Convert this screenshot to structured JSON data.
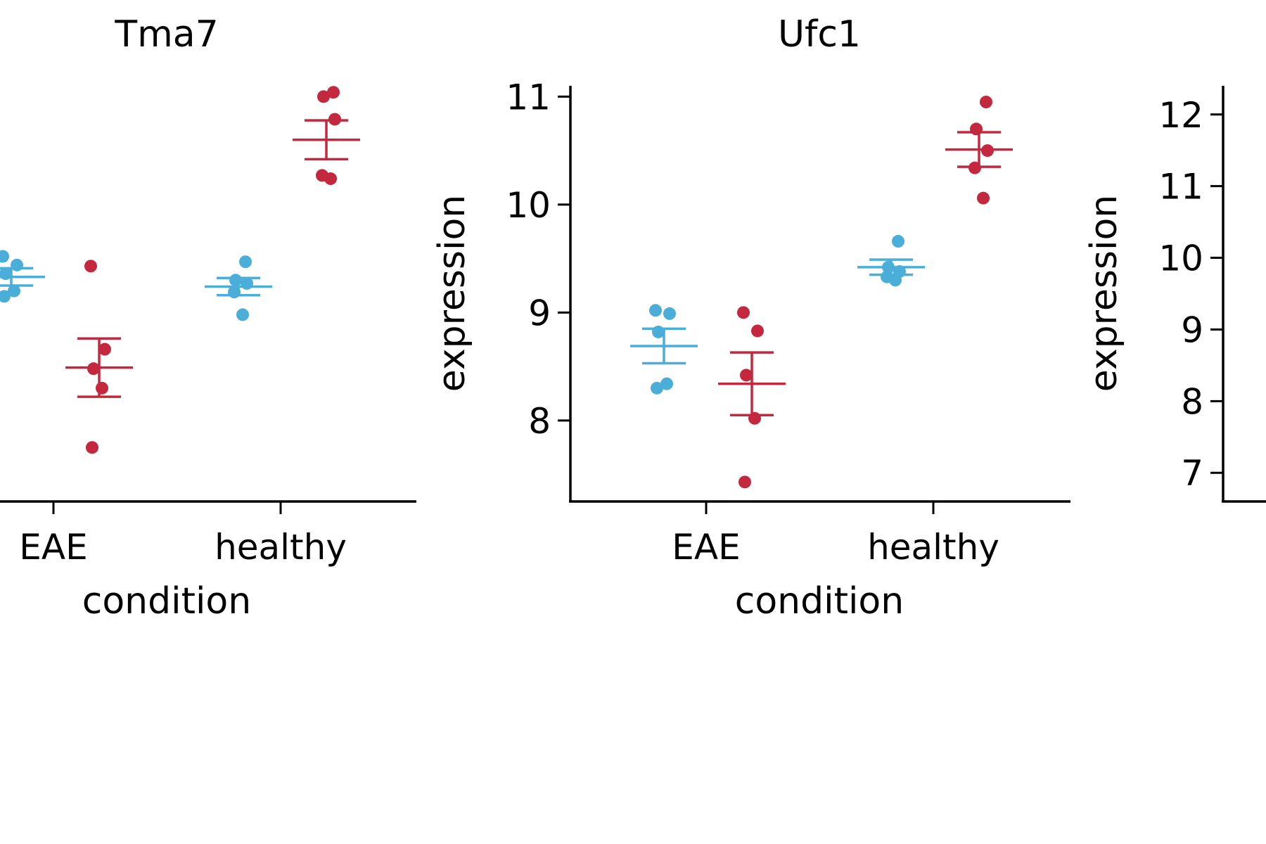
{
  "figure": {
    "colors": {
      "series_a": "#4aaed8",
      "series_b": "#c4283f",
      "axis": "#000000"
    }
  },
  "chart_data": [
    {
      "type": "scatter",
      "title": "Tma7",
      "xlabel": "condition",
      "ylabel": "",
      "categories": [
        "EAE",
        "healthy"
      ],
      "ylim": [
        7.25,
        11.1
      ],
      "y_ticks": [],
      "y_axis_visible": false,
      "grid": false,
      "series": [
        {
          "color": "#4aaed8",
          "points": [
            {
              "category": "EAE",
              "y": 9.52
            },
            {
              "category": "EAE",
              "y": 9.44
            },
            {
              "category": "EAE",
              "y": 9.36
            },
            {
              "category": "EAE",
              "y": 9.2
            },
            {
              "category": "EAE",
              "y": 9.15
            },
            {
              "category": "healthy",
              "y": 9.47
            },
            {
              "category": "healthy",
              "y": 9.3
            },
            {
              "category": "healthy",
              "y": 9.27
            },
            {
              "category": "healthy",
              "y": 9.19
            },
            {
              "category": "healthy",
              "y": 8.98
            }
          ],
          "summary": [
            {
              "category": "EAE",
              "mean": 9.33,
              "error": 0.08
            },
            {
              "category": "healthy",
              "mean": 9.24,
              "error": 0.08
            }
          ]
        },
        {
          "color": "#c4283f",
          "points": [
            {
              "category": "EAE",
              "y": 9.43
            },
            {
              "category": "EAE",
              "y": 8.66
            },
            {
              "category": "EAE",
              "y": 8.48
            },
            {
              "category": "EAE",
              "y": 8.3
            },
            {
              "category": "EAE",
              "y": 7.75
            },
            {
              "category": "healthy",
              "y": 11.04
            },
            {
              "category": "healthy",
              "y": 11.0
            },
            {
              "category": "healthy",
              "y": 10.79
            },
            {
              "category": "healthy",
              "y": 10.27
            },
            {
              "category": "healthy",
              "y": 10.24
            }
          ],
          "summary": [
            {
              "category": "EAE",
              "mean": 8.49,
              "error": 0.27
            },
            {
              "category": "healthy",
              "mean": 10.6,
              "error": 0.18
            }
          ]
        }
      ]
    },
    {
      "type": "scatter",
      "title": "Ufc1",
      "xlabel": "condition",
      "ylabel": "expression",
      "categories": [
        "EAE",
        "healthy"
      ],
      "ylim": [
        7.25,
        11.1
      ],
      "y_ticks": [
        8,
        9,
        10,
        11
      ],
      "y_axis_visible": true,
      "grid": false,
      "series": [
        {
          "color": "#4aaed8",
          "points": [
            {
              "category": "EAE",
              "y": 9.02
            },
            {
              "category": "EAE",
              "y": 8.99
            },
            {
              "category": "EAE",
              "y": 8.82
            },
            {
              "category": "EAE",
              "y": 8.34
            },
            {
              "category": "EAE",
              "y": 8.3
            },
            {
              "category": "healthy",
              "y": 9.66
            },
            {
              "category": "healthy",
              "y": 9.42
            },
            {
              "category": "healthy",
              "y": 9.38
            },
            {
              "category": "healthy",
              "y": 9.33
            },
            {
              "category": "healthy",
              "y": 9.3
            }
          ],
          "summary": [
            {
              "category": "EAE",
              "mean": 8.69,
              "error": 0.16
            },
            {
              "category": "healthy",
              "mean": 9.42,
              "error": 0.07
            }
          ]
        },
        {
          "color": "#c4283f",
          "points": [
            {
              "category": "EAE",
              "y": 9.0
            },
            {
              "category": "EAE",
              "y": 8.83
            },
            {
              "category": "EAE",
              "y": 8.42
            },
            {
              "category": "EAE",
              "y": 8.02
            },
            {
              "category": "EAE",
              "y": 7.43
            },
            {
              "category": "healthy",
              "y": 10.95
            },
            {
              "category": "healthy",
              "y": 10.7
            },
            {
              "category": "healthy",
              "y": 10.5
            },
            {
              "category": "healthy",
              "y": 10.34
            },
            {
              "category": "healthy",
              "y": 10.06
            }
          ],
          "summary": [
            {
              "category": "EAE",
              "mean": 8.34,
              "error": 0.29
            },
            {
              "category": "healthy",
              "mean": 10.51,
              "error": 0.16
            }
          ]
        }
      ]
    },
    {
      "type": "scatter",
      "title": "",
      "xlabel": "",
      "ylabel": "expression",
      "categories": [],
      "ylim": [
        6.6,
        12.4
      ],
      "y_ticks": [
        7,
        8,
        9,
        10,
        11,
        12
      ],
      "y_axis_visible": true,
      "grid": false,
      "series": []
    }
  ]
}
